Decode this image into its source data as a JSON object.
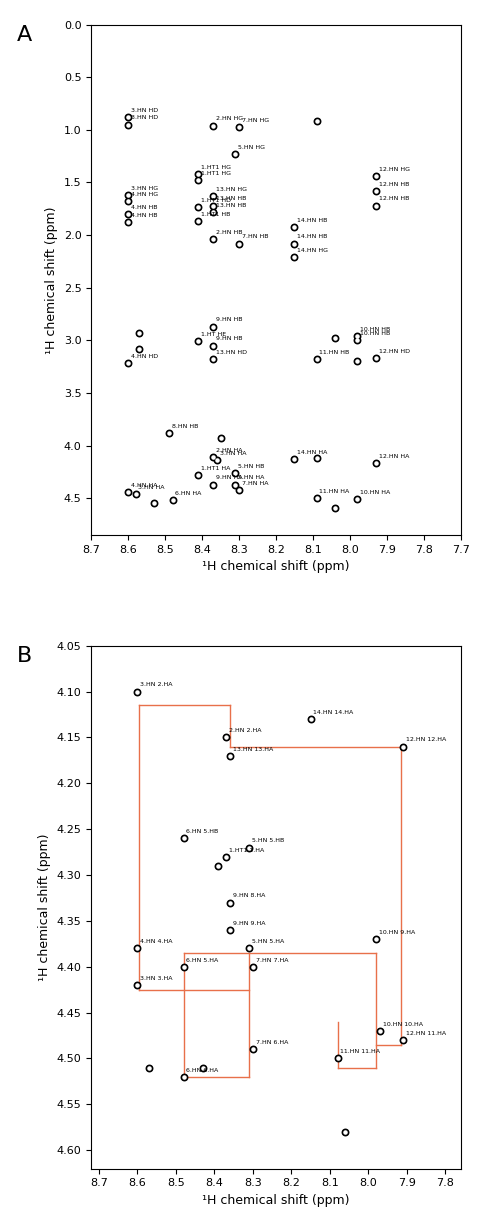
{
  "chart_data": [
    {
      "type": "scatter",
      "title": "A",
      "x_label": "¹H chemical shift (ppm)",
      "y_label": "¹H chemical shift (ppm)",
      "xlim": [
        8.7,
        7.7
      ],
      "ylim": [
        4.85,
        0.0
      ],
      "xticks": [
        8.7,
        8.6,
        8.5,
        8.4,
        8.3,
        8.2,
        8.1,
        8.0,
        7.9,
        7.8,
        7.7
      ],
      "yticks": [
        0.0,
        0.5,
        1.0,
        1.5,
        2.0,
        2.5,
        3.0,
        3.5,
        4.0,
        4.5
      ],
      "color": "#000000",
      "marker": "o",
      "peaks": {
        "x": [
          8.6,
          8.6,
          8.37,
          8.3,
          8.09,
          8.31,
          8.41,
          8.41,
          8.6,
          8.6,
          8.37,
          8.41,
          8.37,
          8.37,
          8.6,
          8.6,
          8.41,
          8.37,
          8.3,
          8.15,
          8.15,
          8.15,
          7.93,
          7.93,
          7.93,
          8.37,
          8.37,
          8.41,
          8.37,
          8.6,
          8.57,
          8.57,
          7.98,
          7.98,
          8.09,
          8.04,
          7.93,
          7.98,
          8.49,
          8.35,
          8.37,
          8.36,
          8.15,
          8.09,
          7.93,
          8.41,
          8.31,
          8.37,
          8.31,
          8.3,
          8.6,
          8.58,
          8.48,
          8.53,
          8.09,
          8.04,
          7.98
        ],
        "y": [
          0.88,
          0.95,
          0.96,
          0.97,
          0.92,
          1.23,
          1.42,
          1.48,
          1.62,
          1.68,
          1.63,
          1.73,
          1.72,
          1.78,
          1.8,
          1.88,
          1.87,
          2.04,
          2.08,
          1.92,
          2.08,
          2.21,
          1.44,
          1.58,
          1.72,
          2.87,
          3.05,
          3.01,
          3.18,
          3.22,
          2.93,
          3.08,
          2.96,
          3.0,
          3.18,
          2.98,
          3.17,
          3.2,
          3.88,
          3.93,
          4.11,
          4.14,
          4.13,
          4.12,
          4.17,
          4.28,
          4.26,
          4.37,
          4.37,
          4.42,
          4.44,
          4.46,
          4.52,
          4.55,
          4.5,
          4.59,
          4.51
        ],
        "labels": [
          "3.HN HD",
          "3.HN HD",
          "2.HN HG",
          "7.HN HG",
          null,
          "5.HN HG",
          "1.HT1 HG",
          "1.HT1 HG",
          "3.HN HG",
          "4.HN HG",
          "13.HN HG",
          "1.HT1 HD",
          "13.HN HB",
          "13.HN HB",
          "4.HN HB",
          "4.HN HB",
          "1.HT1 HB",
          "2.HN HB",
          "7.HN HB",
          "14.HN HB",
          "14.HN HB",
          "14.HN HG",
          "12.HN HG",
          "12.HN HB",
          "12.HN HB",
          "9.HN HB",
          "9.HN HB",
          "1.HT HE",
          "13.HN HD",
          "4.HN HD",
          null,
          null,
          "10.HN HB",
          "10.HN HB",
          "11.HN HB",
          null,
          "12.HN HD",
          null,
          "8.HN HB",
          null,
          "2.HN HA",
          "3.HN HA",
          "14.HN HA",
          null,
          "12.HN HA",
          "1.HT1 HA",
          "5.HN HB",
          "9.HN HA",
          "5.HN HA",
          "7.HN HA",
          "4.HN HA",
          "3.HN HA",
          "6.HN HA",
          null,
          "11.HN HA",
          null,
          "10.HN HA"
        ]
      }
    },
    {
      "type": "scatter",
      "title": "B",
      "x_label": "¹H chemical shift (ppm)",
      "y_label": "¹H chemical shift (ppm)",
      "xlim": [
        8.72,
        7.76
      ],
      "ylim": [
        4.62,
        4.05
      ],
      "xticks": [
        8.7,
        8.6,
        8.5,
        8.4,
        8.3,
        8.2,
        8.1,
        8.0,
        7.9,
        7.8
      ],
      "yticks": [
        4.05,
        {
          "value": 4.1,
          "label": "4.10"
        },
        4.15,
        {
          "value": 4.2,
          "label": "4.20"
        },
        4.25,
        {
          "value": 4.3,
          "label": "4.30"
        },
        4.35,
        {
          "value": 4.4,
          "label": "4.40"
        },
        4.45,
        {
          "value": 4.5,
          "label": "4.50"
        },
        4.55,
        {
          "value": 4.6,
          "label": "4.60"
        }
      ],
      "color": "#000000",
      "marker": "o",
      "peaks": {
        "x": [
          8.6,
          8.37,
          8.36,
          8.15,
          7.91,
          8.48,
          8.31,
          8.37,
          8.39,
          8.36,
          8.36,
          8.31,
          8.3,
          8.6,
          8.6,
          8.48,
          7.98,
          8.3,
          8.48,
          7.97,
          8.08,
          7.91,
          8.57,
          8.43,
          8.06
        ],
        "y": [
          4.1,
          4.15,
          4.17,
          4.13,
          4.16,
          4.26,
          4.27,
          4.28,
          4.29,
          4.33,
          4.36,
          4.38,
          4.4,
          4.38,
          4.42,
          4.4,
          4.37,
          4.49,
          4.52,
          4.47,
          4.5,
          4.48,
          4.51,
          4.51,
          4.58
        ],
        "labels": [
          "3.HN 2.HA",
          "2.HN 2.HA",
          "13.HN 13.HA",
          "14.HN 14.HA",
          "12.HN 12.HA",
          "6.HN 5.HB",
          "5.HN 5.HB",
          "1.HT1 1.HA",
          null,
          "9.HN 8.HA",
          "9.HN 9.HA",
          "5.HN 5.HA",
          "7.HN 7.HA",
          "4.HN 4.HA",
          "3.HN 3.HA",
          "6.HN 5.HA",
          "10.HN 9.HA",
          "7.HN 6.HA",
          "6.HN 6.HA",
          "10.HN 10.HA",
          "11.HN 11.HA",
          "12.HN 11.HA",
          null,
          null,
          null
        ]
      },
      "walk": {
        "color": "#e8704a",
        "line_style": "solid",
        "segments": [
          {
            "x": [
              8.595,
              8.595
            ],
            "y": [
              4.115,
              4.425
            ]
          },
          {
            "x": [
              8.595,
              8.36
            ],
            "y": [
              4.115,
              4.115
            ]
          },
          {
            "x": [
              8.595,
              8.31
            ],
            "y": [
              4.425,
              4.425
            ]
          },
          {
            "x": [
              8.36,
              8.36
            ],
            "y": [
              4.115,
              4.16
            ]
          },
          {
            "x": [
              8.36,
              7.915
            ],
            "y": [
              4.16,
              4.16
            ]
          },
          {
            "x": [
              7.915,
              7.915
            ],
            "y": [
              4.16,
              4.485
            ]
          },
          {
            "x": [
              8.31,
              8.31
            ],
            "y": [
              4.385,
              4.52
            ]
          },
          {
            "x": [
              8.48,
              8.48
            ],
            "y": [
              4.385,
              4.52
            ]
          },
          {
            "x": [
              8.48,
              8.31
            ],
            "y": [
              4.52,
              4.52
            ]
          },
          {
            "x": [
              8.48,
              7.98
            ],
            "y": [
              4.385,
              4.385
            ]
          },
          {
            "x": [
              7.98,
              7.98
            ],
            "y": [
              4.385,
              4.51
            ]
          },
          {
            "x": [
              8.08,
              7.98
            ],
            "y": [
              4.51,
              4.51
            ]
          },
          {
            "x": [
              8.08,
              8.08
            ],
            "y": [
              4.46,
              4.51
            ]
          },
          {
            "x": [
              7.98,
              7.915
            ],
            "y": [
              4.485,
              4.485
            ]
          }
        ]
      }
    }
  ]
}
